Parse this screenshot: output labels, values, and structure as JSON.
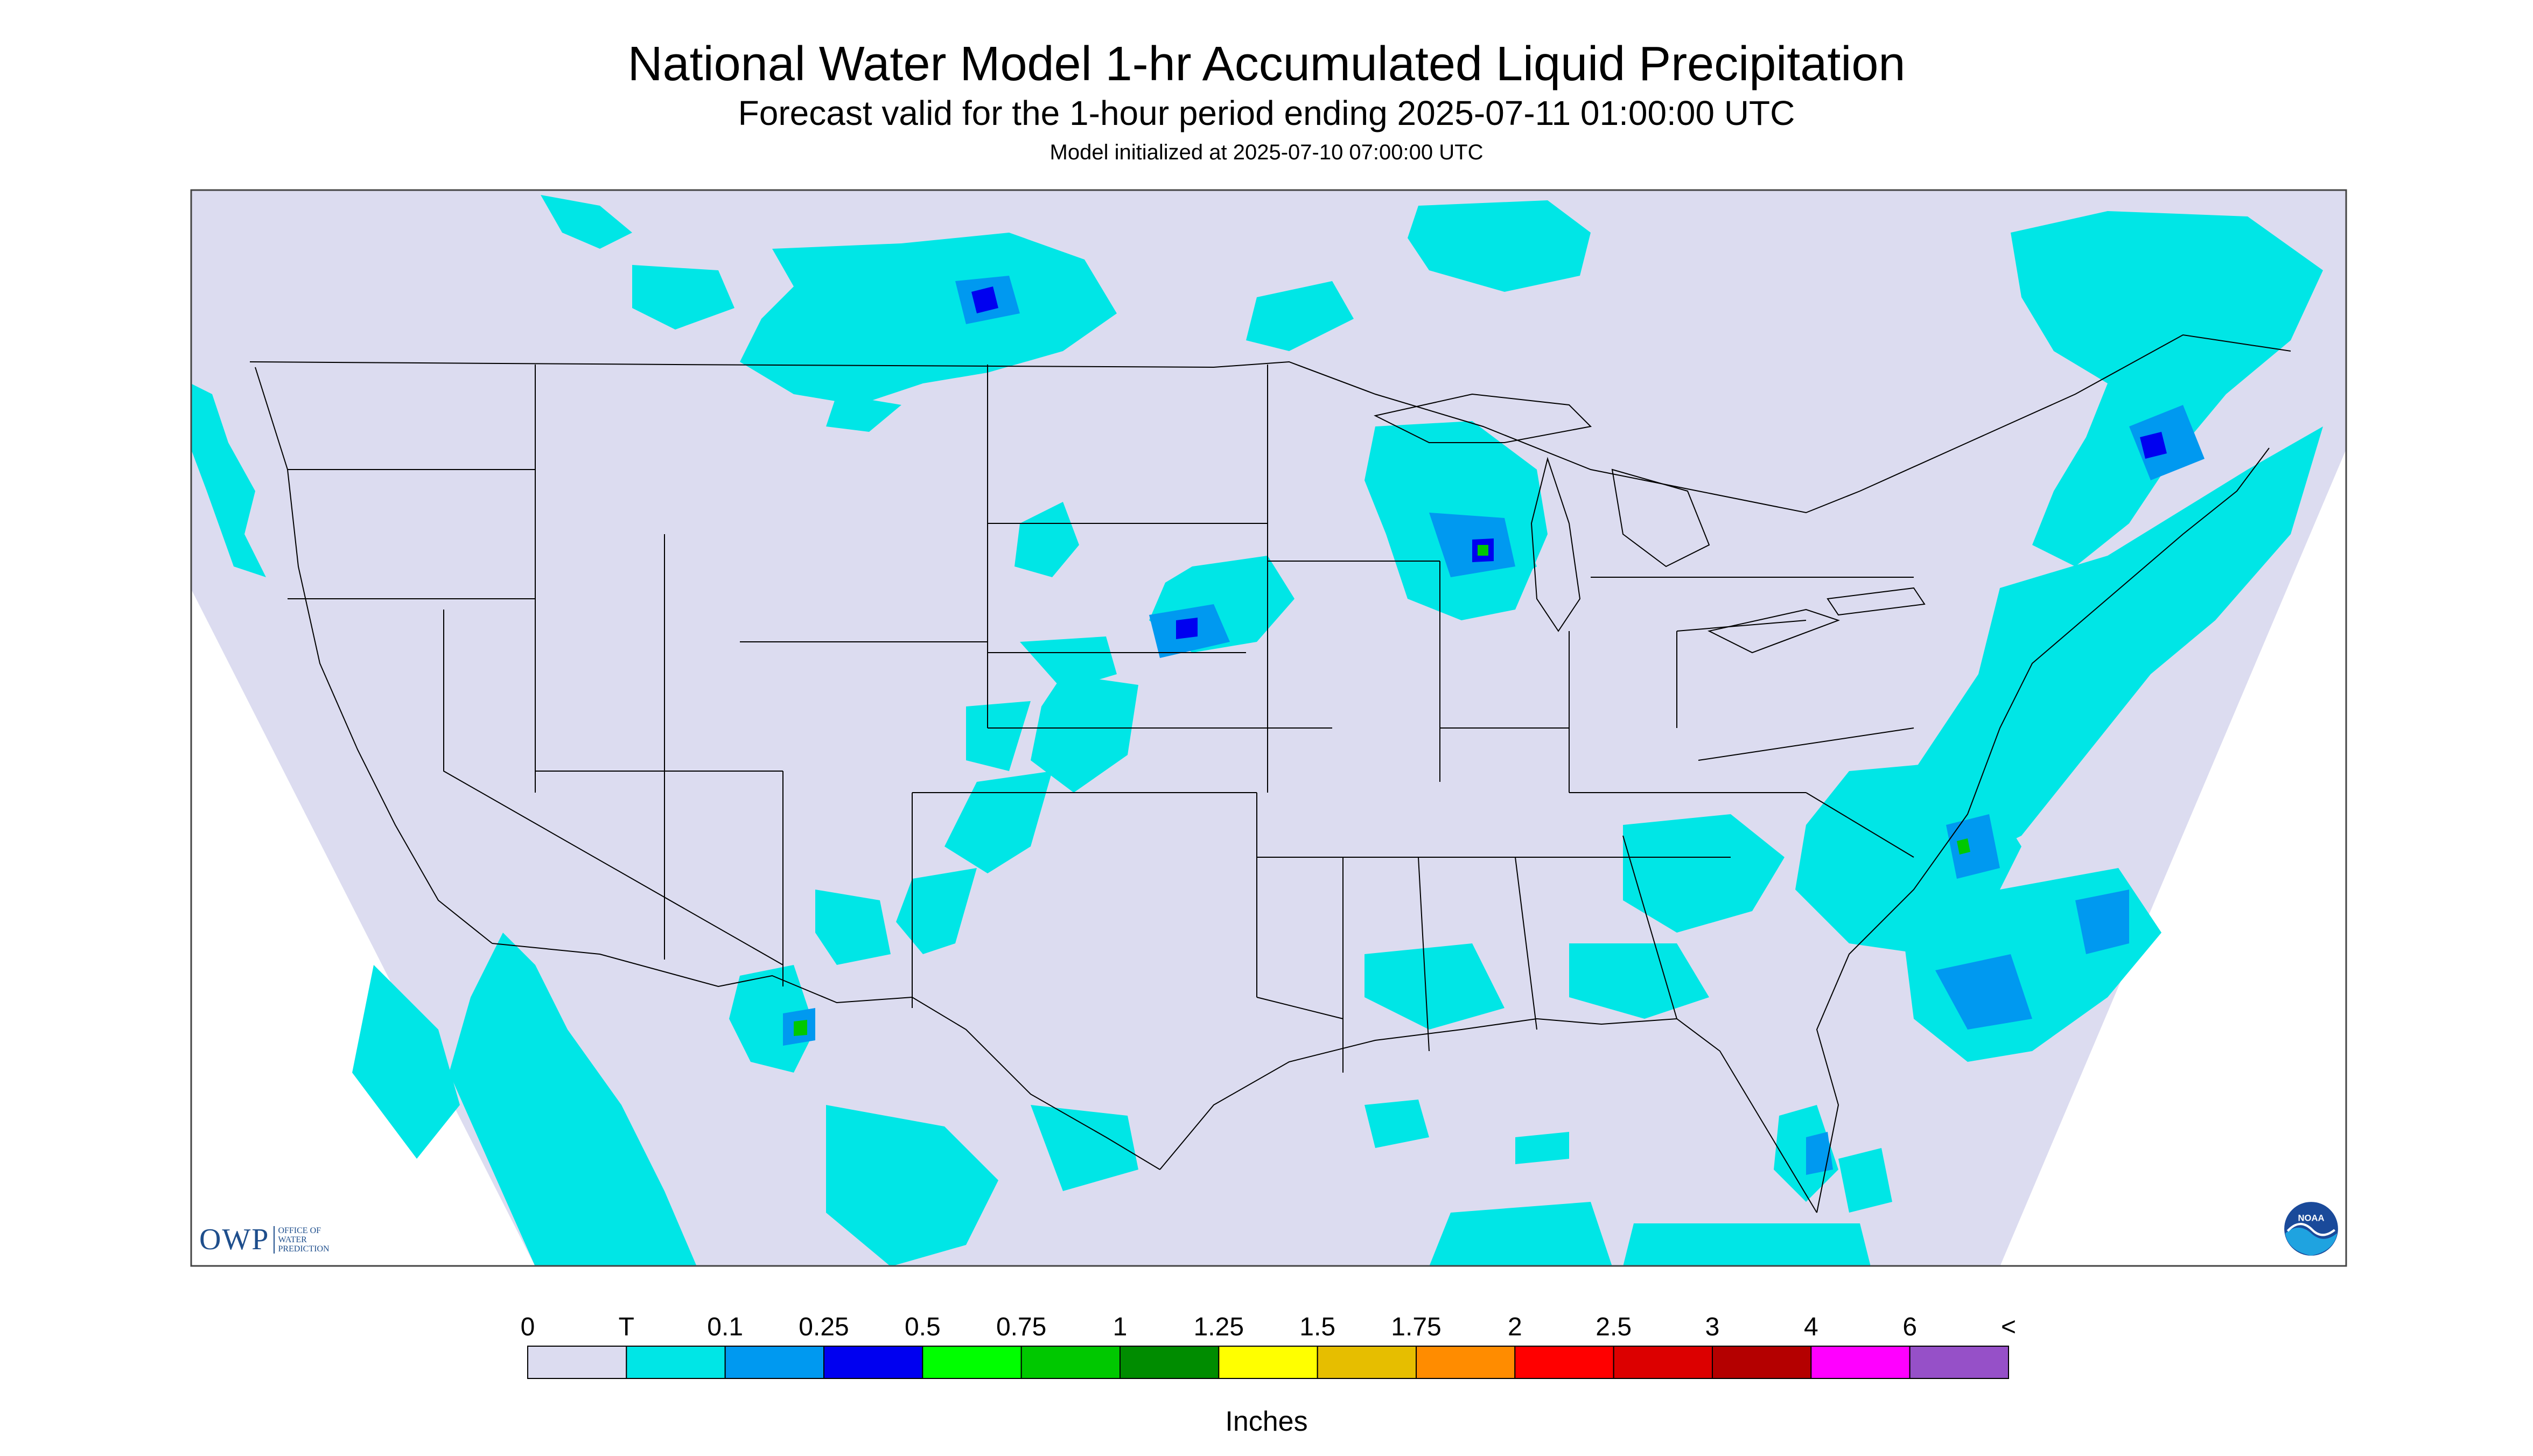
{
  "header": {
    "title": "National Water Model 1-hr Accumulated Liquid Precipitation",
    "subtitle": "Forecast valid for the 1-hour period ending 2025-07-11 01:00:00 UTC",
    "init": "Model initialized at 2025-07-10 07:00:00 UTC"
  },
  "logos": {
    "owp_big": "OWP",
    "owp_small": [
      "OFFICE OF",
      "WATER",
      "PREDICTION"
    ],
    "noaa": "NOAA"
  },
  "legend": {
    "labels": [
      "0",
      "T",
      "0.1",
      "0.25",
      "0.5",
      "0.75",
      "1",
      "1.25",
      "1.5",
      "1.75",
      "2",
      "2.5",
      "3",
      "4",
      "6",
      "<"
    ],
    "colors": [
      "#dcdcf0",
      "#00e6e6",
      "#0099f0",
      "#0000f0",
      "#00ff00",
      "#00c800",
      "#008c00",
      "#ffff00",
      "#e6be00",
      "#ff8c00",
      "#ff0000",
      "#dc0000",
      "#b40000",
      "#ff00ff",
      "#9650c8"
    ],
    "units": "Inches"
  },
  "map": {
    "background": "#dcdcf0",
    "precip_light": "#00e6e6",
    "precip_med": "#0099f0",
    "precip_heavy": "#0000f0",
    "precip_green": "#00c800"
  }
}
